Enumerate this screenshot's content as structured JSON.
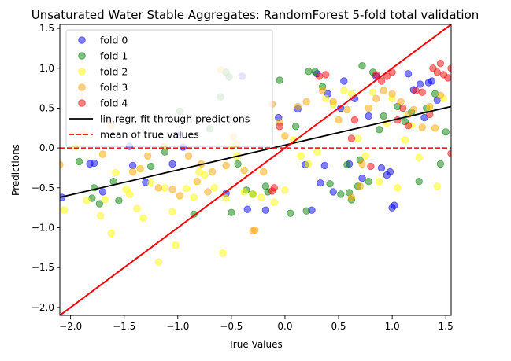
{
  "chart_data": {
    "type": "scatter",
    "title": "Unsaturated Water Stable Aggregates: RandomForest 5-fold total validation",
    "xlabel": "True Values",
    "ylabel": "Predictions",
    "xlim": [
      -2.1,
      1.55
    ],
    "ylim": [
      -2.1,
      1.55
    ],
    "xticks": [
      -2.0,
      -1.5,
      -1.0,
      -0.5,
      0.0,
      0.5,
      1.0,
      1.5
    ],
    "yticks": [
      -2.0,
      -1.5,
      -1.0,
      -0.5,
      0.0,
      0.5,
      1.0,
      1.5
    ],
    "xtick_labels": [
      "−2.0",
      "−1.5",
      "−1.0",
      "−0.5",
      "0.0",
      "0.5",
      "1.0",
      "1.5"
    ],
    "ytick_labels": [
      "−2.0",
      "−1.5",
      "−1.0",
      "−0.5",
      "0.0",
      "0.5",
      "1.0",
      "1.5"
    ],
    "grid": false,
    "legend_position": "top-left",
    "series": [
      {
        "name": "fold 0",
        "color": "#0000ff",
        "points": [
          [
            -2.08,
            -0.62
          ],
          [
            -1.82,
            -0.2
          ],
          [
            -1.78,
            -0.19
          ],
          [
            -1.7,
            -0.55
          ],
          [
            -1.45,
            0.02
          ],
          [
            -1.42,
            -0.22
          ],
          [
            -1.3,
            -0.43
          ],
          [
            -1.05,
            -0.2
          ],
          [
            -0.98,
            0.16
          ],
          [
            -0.95,
            0.01
          ],
          [
            -0.55,
            -0.57
          ],
          [
            -0.4,
            0.9
          ],
          [
            -0.35,
            -0.77
          ],
          [
            -0.18,
            -0.78
          ],
          [
            -0.06,
            0.38
          ],
          [
            0.12,
            0.49
          ],
          [
            0.19,
            -0.21
          ],
          [
            0.25,
            -0.78
          ],
          [
            0.3,
            0.93
          ],
          [
            0.33,
            -0.44
          ],
          [
            0.37,
            -0.22
          ],
          [
            0.4,
            0.68
          ],
          [
            0.45,
            -0.55
          ],
          [
            0.52,
            0.5
          ],
          [
            0.55,
            0.84
          ],
          [
            0.6,
            -0.2
          ],
          [
            0.65,
            0.62
          ],
          [
            0.72,
            -0.38
          ],
          [
            0.78,
            0.4
          ],
          [
            0.85,
            0.9
          ],
          [
            0.9,
            -0.25
          ],
          [
            0.95,
            -0.34
          ],
          [
            0.98,
            -0.3
          ],
          [
            1.0,
            -0.75
          ],
          [
            1.02,
            -0.72
          ],
          [
            1.15,
            0.93
          ],
          [
            1.2,
            0.73
          ],
          [
            1.26,
            0.8
          ],
          [
            1.3,
            0.38
          ],
          [
            1.34,
            0.82
          ],
          [
            1.37,
            0.84
          ],
          [
            1.42,
            0.6
          ]
        ]
      },
      {
        "name": "fold 1",
        "color": "#008000",
        "points": [
          [
            -1.92,
            -0.17
          ],
          [
            -1.8,
            -0.63
          ],
          [
            -1.78,
            -0.5
          ],
          [
            -1.73,
            -0.7
          ],
          [
            -1.6,
            -0.42
          ],
          [
            -1.55,
            -0.66
          ],
          [
            -1.25,
            -0.23
          ],
          [
            -1.12,
            -0.05
          ],
          [
            -0.98,
            0.46
          ],
          [
            -0.85,
            -0.83
          ],
          [
            -0.7,
            0.24
          ],
          [
            -0.6,
            0.64
          ],
          [
            -0.55,
            0.95
          ],
          [
            -0.52,
            0.89
          ],
          [
            -0.5,
            -0.81
          ],
          [
            -0.44,
            -0.2
          ],
          [
            -0.36,
            -0.53
          ],
          [
            -0.3,
            -0.58
          ],
          [
            -0.18,
            -0.48
          ],
          [
            -0.16,
            -0.55
          ],
          [
            -0.05,
            0.85
          ],
          [
            0.05,
            -0.82
          ],
          [
            0.1,
            0.27
          ],
          [
            0.2,
            -0.79
          ],
          [
            0.22,
            0.96
          ],
          [
            0.28,
            0.96
          ],
          [
            0.35,
            0.77
          ],
          [
            0.42,
            -0.45
          ],
          [
            0.52,
            -0.58
          ],
          [
            0.58,
            -0.21
          ],
          [
            0.6,
            -0.56
          ],
          [
            0.62,
            -0.65
          ],
          [
            0.68,
            -0.48
          ],
          [
            0.7,
            -0.15
          ],
          [
            0.72,
            1.03
          ],
          [
            0.78,
            -0.42
          ],
          [
            0.82,
            0.95
          ],
          [
            0.88,
            0.23
          ],
          [
            0.92,
            0.4
          ],
          [
            1.05,
            0.52
          ],
          [
            1.12,
            0.33
          ],
          [
            1.18,
            0.45
          ],
          [
            1.25,
            -0.42
          ],
          [
            1.32,
            0.5
          ],
          [
            1.4,
            0.68
          ],
          [
            1.45,
            -0.2
          ],
          [
            1.5,
            0.2
          ]
        ]
      },
      {
        "name": "fold 2",
        "color": "#ffff00",
        "points": [
          [
            -2.06,
            -0.78
          ],
          [
            -1.95,
            0.02
          ],
          [
            -1.85,
            -0.66
          ],
          [
            -1.72,
            -0.85
          ],
          [
            -1.68,
            -0.65
          ],
          [
            -1.62,
            -1.07
          ],
          [
            -1.58,
            -0.31
          ],
          [
            -1.48,
            -0.52
          ],
          [
            -1.45,
            -0.58
          ],
          [
            -1.38,
            -0.76
          ],
          [
            -1.32,
            -0.88
          ],
          [
            -1.25,
            -0.44
          ],
          [
            -1.18,
            -1.43
          ],
          [
            -1.12,
            -0.5
          ],
          [
            -1.05,
            -0.8
          ],
          [
            -1.02,
            -1.22
          ],
          [
            -0.92,
            -0.51
          ],
          [
            -0.85,
            -0.62
          ],
          [
            -0.8,
            -0.3
          ],
          [
            -0.75,
            -0.34
          ],
          [
            -0.66,
            -0.5
          ],
          [
            -0.58,
            -1.32
          ],
          [
            -0.55,
            -0.63
          ],
          [
            -0.5,
            0.02
          ],
          [
            -0.45,
            -0.1
          ],
          [
            -0.38,
            -0.55
          ],
          [
            -0.3,
            -0.58
          ],
          [
            -0.22,
            -0.62
          ],
          [
            -0.1,
            -0.68
          ],
          [
            0.0,
            -0.53
          ],
          [
            0.08,
            0.1
          ],
          [
            0.15,
            -0.1
          ],
          [
            0.22,
            -0.2
          ],
          [
            0.3,
            -0.05
          ],
          [
            0.38,
            0.62
          ],
          [
            0.45,
            0.55
          ],
          [
            0.55,
            0.72
          ],
          [
            0.62,
            0.68
          ],
          [
            0.68,
            0.12
          ],
          [
            0.75,
            -0.1
          ],
          [
            0.82,
            0.7
          ],
          [
            0.88,
            -0.42
          ],
          [
            0.95,
            0.31
          ],
          [
            1.0,
            0.62
          ],
          [
            1.05,
            -0.5
          ],
          [
            1.12,
            0.1
          ],
          [
            1.18,
            0.28
          ],
          [
            1.25,
            -0.12
          ],
          [
            1.35,
            0.5
          ],
          [
            1.42,
            -0.48
          ],
          [
            1.48,
            0.62
          ]
        ]
      },
      {
        "name": "fold 3",
        "color": "#ffa500",
        "points": [
          [
            -2.1,
            -0.21
          ],
          [
            -1.88,
            0.18
          ],
          [
            -1.7,
            -0.08
          ],
          [
            -1.62,
            0.28
          ],
          [
            -1.42,
            -0.3
          ],
          [
            -1.35,
            -0.26
          ],
          [
            -1.28,
            -0.1
          ],
          [
            -1.18,
            -0.5
          ],
          [
            -1.12,
            0.02
          ],
          [
            -1.05,
            -0.52
          ],
          [
            -0.98,
            -0.6
          ],
          [
            -0.9,
            -0.1
          ],
          [
            -0.82,
            -0.42
          ],
          [
            -0.78,
            -0.2
          ],
          [
            -0.72,
            -0.55
          ],
          [
            -0.68,
            -0.3
          ],
          [
            -0.6,
            0.98
          ],
          [
            -0.55,
            -0.22
          ],
          [
            -0.48,
            0.14
          ],
          [
            -0.45,
            0.05
          ],
          [
            -0.38,
            -0.28
          ],
          [
            -0.3,
            -1.04
          ],
          [
            -0.28,
            -1.03
          ],
          [
            -0.2,
            -0.3
          ],
          [
            -0.12,
            0.55
          ],
          [
            -0.05,
            0.32
          ],
          [
            0.0,
            0.15
          ],
          [
            0.12,
            0.52
          ],
          [
            0.2,
            0.58
          ],
          [
            0.35,
            0.72
          ],
          [
            0.45,
            0.58
          ],
          [
            0.5,
            0.35
          ],
          [
            0.58,
            0.48
          ],
          [
            0.62,
            -0.62
          ],
          [
            0.7,
            -0.48
          ],
          [
            0.72,
            -0.2
          ],
          [
            0.78,
            0.5
          ],
          [
            0.85,
            0.62
          ],
          [
            0.92,
            0.72
          ],
          [
            1.0,
            0.68
          ],
          [
            1.08,
            0.58
          ],
          [
            1.15,
            0.42
          ],
          [
            1.2,
            0.48
          ],
          [
            1.28,
            0.26
          ],
          [
            1.35,
            0.52
          ],
          [
            1.4,
            0.25
          ],
          [
            1.45,
            0.66
          ]
        ]
      },
      {
        "name": "fold 4",
        "color": "#ff0000",
        "points": [
          [
            -0.05,
            0.27
          ],
          [
            -0.12,
            -0.54
          ],
          [
            -0.1,
            -0.5
          ],
          [
            0.32,
            0.9
          ],
          [
            0.38,
            0.92
          ],
          [
            0.62,
            0.12
          ],
          [
            0.65,
            0.35
          ],
          [
            0.8,
            -0.23
          ],
          [
            0.85,
            0.92
          ],
          [
            0.9,
            0.84
          ],
          [
            0.95,
            0.9
          ],
          [
            1.0,
            0.95
          ],
          [
            1.05,
            0.35
          ],
          [
            1.1,
            0.5
          ],
          [
            1.15,
            0.28
          ],
          [
            1.22,
            0.72
          ],
          [
            1.28,
            0.7
          ],
          [
            1.35,
            0.42
          ],
          [
            1.38,
            1.0
          ],
          [
            1.42,
            0.95
          ],
          [
            1.45,
            1.06
          ],
          [
            1.48,
            0.92
          ],
          [
            1.52,
            0.88
          ],
          [
            1.55,
            1.0
          ],
          [
            1.55,
            -0.07
          ]
        ]
      }
    ],
    "lines": [
      {
        "name": "lin.regr. fit through predictions",
        "color": "#000000",
        "style": "solid",
        "x": [
          -2.1,
          1.55
        ],
        "y": [
          -0.62,
          0.52
        ]
      },
      {
        "name": "mean of true values",
        "color": "#ff0000",
        "style": "dashed",
        "x": [
          -2.1,
          1.55
        ],
        "y": [
          0.0,
          0.0
        ]
      },
      {
        "name": "",
        "color": "#ff0000",
        "style": "solid",
        "x": [
          -2.1,
          1.55
        ],
        "y": [
          -2.1,
          1.55
        ]
      }
    ]
  }
}
